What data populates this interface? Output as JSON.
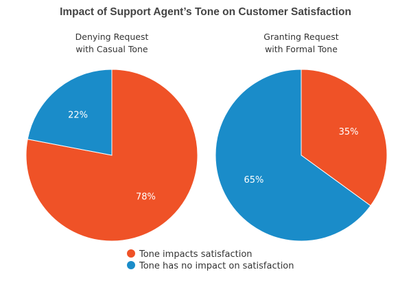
{
  "chart_data": {
    "type": "pie",
    "title": "Impact of Support Agent’s Tone on Customer Satisfaction",
    "legend": {
      "placement": "bottom-center",
      "entries": [
        {
          "label": "Tone impacts satisfaction",
          "color": "#EF5227"
        },
        {
          "label": "Tone has no impact on satisfaction",
          "color": "#1A8CC9"
        }
      ]
    },
    "charts": [
      {
        "subtitle": [
          "Denying Request",
          "with Casual Tone"
        ],
        "slices": [
          {
            "label": "Tone impacts satisfaction",
            "value": 78,
            "display": "78%",
            "color": "#EF5227"
          },
          {
            "label": "Tone has no impact on satisfaction",
            "value": 22,
            "display": "22%",
            "color": "#1A8CC9"
          }
        ]
      },
      {
        "subtitle": [
          "Granting Request",
          "with Formal Tone"
        ],
        "slices": [
          {
            "label": "Tone impacts satisfaction",
            "value": 35,
            "display": "35%",
            "color": "#EF5227"
          },
          {
            "label": "Tone has no impact on satisfaction",
            "value": 65,
            "display": "65%",
            "color": "#1A8CC9"
          }
        ]
      }
    ]
  }
}
